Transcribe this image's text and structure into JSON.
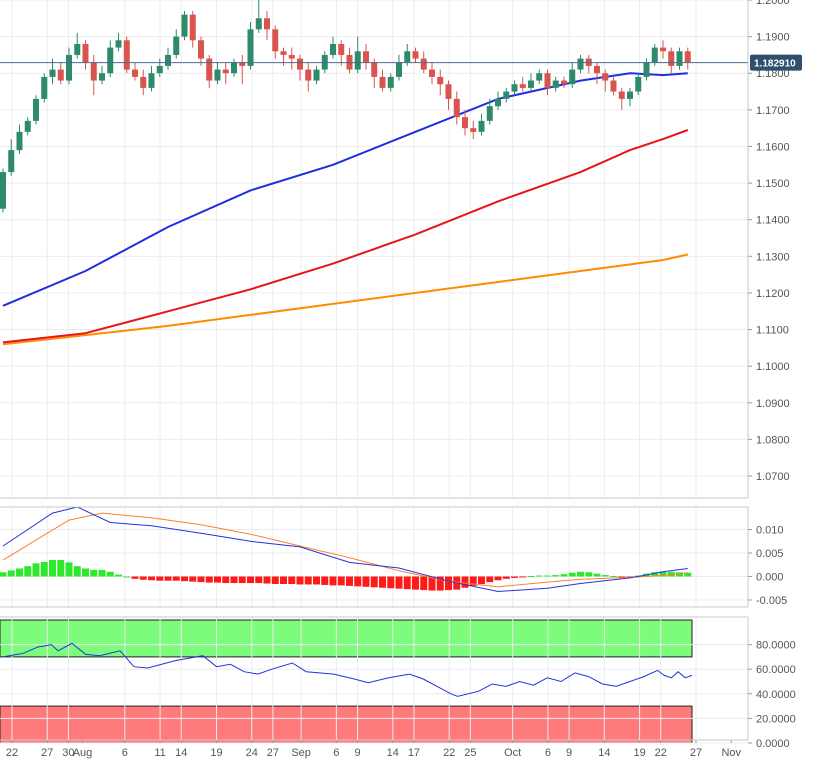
{
  "chart_data": [
    {
      "type": "candlestick",
      "price_ticks": [
        "1.2000",
        "1.1900",
        "1.1800",
        "1.1700",
        "1.1600",
        "1.1500",
        "1.1400",
        "1.1300",
        "1.1200",
        "1.1100",
        "1.1000",
        "1.0900",
        "1.0800",
        "1.0700"
      ],
      "ylim": [
        1.064,
        1.2
      ],
      "current_price": 1.18291,
      "current_price_label": "1.182910",
      "x_labels": [
        {
          "label": "22",
          "day": 0
        },
        {
          "label": "27",
          "day": 5
        },
        {
          "label": "30",
          "day": 8
        },
        {
          "label": "Aug",
          "day": 10
        },
        {
          "label": "6",
          "day": 16
        },
        {
          "label": "11",
          "day": 21
        },
        {
          "label": "14",
          "day": 24
        },
        {
          "label": "19",
          "day": 29
        },
        {
          "label": "24",
          "day": 34
        },
        {
          "label": "27",
          "day": 37
        },
        {
          "label": "Sep",
          "day": 41
        },
        {
          "label": "6",
          "day": 46
        },
        {
          "label": "9",
          "day": 49
        },
        {
          "label": "14",
          "day": 54
        },
        {
          "label": "17",
          "day": 57
        },
        {
          "label": "22",
          "day": 62
        },
        {
          "label": "25",
          "day": 65
        },
        {
          "label": "Oct",
          "day": 71
        },
        {
          "label": "6",
          "day": 76
        },
        {
          "label": "9",
          "day": 79
        },
        {
          "label": "14",
          "day": 84
        },
        {
          "label": "19",
          "day": 89
        },
        {
          "label": "22",
          "day": 92
        },
        {
          "label": "27",
          "day": 97
        },
        {
          "label": "Nov",
          "day": 102
        }
      ],
      "candles": [
        [
          0,
          1.143,
          1.153,
          1.142,
          1.154
        ],
        [
          1,
          1.153,
          1.159,
          1.152,
          1.162
        ],
        [
          2,
          1.159,
          1.164,
          1.158,
          1.166
        ],
        [
          3,
          1.164,
          1.167,
          1.163,
          1.168
        ],
        [
          4,
          1.167,
          1.173,
          1.166,
          1.174
        ],
        [
          5,
          1.173,
          1.179,
          1.172,
          1.18
        ],
        [
          6,
          1.179,
          1.181,
          1.177,
          1.184
        ],
        [
          7,
          1.181,
          1.178,
          1.177,
          1.183
        ],
        [
          8,
          1.178,
          1.185,
          1.177,
          1.187
        ],
        [
          9,
          1.185,
          1.188,
          1.184,
          1.191
        ],
        [
          10,
          1.188,
          1.183,
          1.181,
          1.189
        ],
        [
          11,
          1.183,
          1.178,
          1.174,
          1.185
        ],
        [
          12,
          1.178,
          1.18,
          1.177,
          1.182
        ],
        [
          13,
          1.18,
          1.187,
          1.179,
          1.189
        ],
        [
          14,
          1.187,
          1.189,
          1.186,
          1.191
        ],
        [
          15,
          1.189,
          1.181,
          1.18,
          1.19
        ],
        [
          16,
          1.181,
          1.179,
          1.178,
          1.183
        ],
        [
          17,
          1.179,
          1.176,
          1.174,
          1.181
        ],
        [
          18,
          1.176,
          1.18,
          1.175,
          1.182
        ],
        [
          19,
          1.18,
          1.182,
          1.179,
          1.184
        ],
        [
          20,
          1.182,
          1.185,
          1.181,
          1.187
        ],
        [
          21,
          1.185,
          1.19,
          1.184,
          1.192
        ],
        [
          22,
          1.19,
          1.196,
          1.189,
          1.197
        ],
        [
          23,
          1.196,
          1.189,
          1.187,
          1.197
        ],
        [
          24,
          1.189,
          1.184,
          1.182,
          1.19
        ],
        [
          25,
          1.184,
          1.178,
          1.176,
          1.185
        ],
        [
          26,
          1.178,
          1.181,
          1.177,
          1.183
        ],
        [
          27,
          1.181,
          1.18,
          1.177,
          1.183
        ],
        [
          28,
          1.18,
          1.183,
          1.179,
          1.184
        ],
        [
          29,
          1.183,
          1.182,
          1.177,
          1.185
        ],
        [
          30,
          1.182,
          1.192,
          1.181,
          1.194
        ],
        [
          31,
          1.192,
          1.195,
          1.191,
          1.201
        ],
        [
          32,
          1.195,
          1.192,
          1.189,
          1.197
        ],
        [
          33,
          1.192,
          1.186,
          1.184,
          1.193
        ],
        [
          34,
          1.186,
          1.185,
          1.182,
          1.187
        ],
        [
          35,
          1.185,
          1.184,
          1.181,
          1.187
        ],
        [
          36,
          1.184,
          1.181,
          1.178,
          1.185
        ],
        [
          37,
          1.181,
          1.178,
          1.175,
          1.183
        ],
        [
          38,
          1.178,
          1.181,
          1.177,
          1.182
        ],
        [
          39,
          1.181,
          1.185,
          1.18,
          1.186
        ],
        [
          40,
          1.185,
          1.188,
          1.184,
          1.19
        ],
        [
          41,
          1.188,
          1.185,
          1.182,
          1.189
        ],
        [
          42,
          1.185,
          1.181,
          1.18,
          1.187
        ],
        [
          43,
          1.181,
          1.186,
          1.18,
          1.19
        ],
        [
          44,
          1.186,
          1.183,
          1.181,
          1.188
        ],
        [
          45,
          1.183,
          1.179,
          1.176,
          1.184
        ],
        [
          46,
          1.179,
          1.176,
          1.175,
          1.181
        ],
        [
          47,
          1.176,
          1.179,
          1.175,
          1.18
        ],
        [
          48,
          1.179,
          1.183,
          1.178,
          1.185
        ],
        [
          49,
          1.183,
          1.186,
          1.182,
          1.188
        ],
        [
          50,
          1.186,
          1.184,
          1.183,
          1.187
        ],
        [
          51,
          1.184,
          1.181,
          1.18,
          1.186
        ],
        [
          52,
          1.181,
          1.179,
          1.177,
          1.183
        ],
        [
          53,
          1.179,
          1.177,
          1.174,
          1.181
        ],
        [
          54,
          1.177,
          1.173,
          1.17,
          1.178
        ],
        [
          55,
          1.173,
          1.168,
          1.166,
          1.175
        ],
        [
          56,
          1.168,
          1.165,
          1.163,
          1.17
        ],
        [
          57,
          1.165,
          1.164,
          1.162,
          1.167
        ],
        [
          58,
          1.164,
          1.167,
          1.163,
          1.169
        ],
        [
          59,
          1.167,
          1.171,
          1.166,
          1.173
        ],
        [
          60,
          1.171,
          1.173,
          1.17,
          1.175
        ],
        [
          61,
          1.173,
          1.175,
          1.172,
          1.176
        ],
        [
          62,
          1.175,
          1.177,
          1.174,
          1.178
        ],
        [
          63,
          1.177,
          1.176,
          1.175,
          1.179
        ],
        [
          64,
          1.176,
          1.178,
          1.175,
          1.18
        ],
        [
          65,
          1.178,
          1.18,
          1.177,
          1.181
        ],
        [
          66,
          1.18,
          1.176,
          1.174,
          1.181
        ],
        [
          67,
          1.176,
          1.178,
          1.175,
          1.179
        ],
        [
          68,
          1.178,
          1.177,
          1.176,
          1.179
        ],
        [
          69,
          1.177,
          1.181,
          1.176,
          1.183
        ],
        [
          70,
          1.181,
          1.184,
          1.18,
          1.185
        ],
        [
          71,
          1.184,
          1.182,
          1.18,
          1.185
        ],
        [
          72,
          1.182,
          1.18,
          1.177,
          1.183
        ],
        [
          73,
          1.18,
          1.178,
          1.175,
          1.181
        ],
        [
          74,
          1.178,
          1.175,
          1.174,
          1.179
        ],
        [
          75,
          1.175,
          1.173,
          1.17,
          1.176
        ],
        [
          76,
          1.173,
          1.175,
          1.171,
          1.176
        ],
        [
          77,
          1.175,
          1.179,
          1.174,
          1.18
        ],
        [
          78,
          1.179,
          1.183,
          1.178,
          1.184
        ],
        [
          79,
          1.183,
          1.187,
          1.182,
          1.188
        ],
        [
          80,
          1.187,
          1.186,
          1.184,
          1.189
        ],
        [
          81,
          1.186,
          1.182,
          1.18,
          1.187
        ],
        [
          82,
          1.182,
          1.186,
          1.181,
          1.187
        ],
        [
          83,
          1.186,
          1.183,
          1.181,
          1.187
        ]
      ],
      "sma_blue": [
        [
          0,
          1.1165
        ],
        [
          10,
          1.126
        ],
        [
          20,
          1.138
        ],
        [
          30,
          1.148
        ],
        [
          40,
          1.155
        ],
        [
          50,
          1.164
        ],
        [
          60,
          1.173
        ],
        [
          70,
          1.178
        ],
        [
          76,
          1.18
        ],
        [
          80,
          1.1795
        ],
        [
          83,
          1.18
        ]
      ],
      "sma_red": [
        [
          0,
          1.1065
        ],
        [
          10,
          1.109
        ],
        [
          20,
          1.115
        ],
        [
          30,
          1.121
        ],
        [
          40,
          1.128
        ],
        [
          50,
          1.136
        ],
        [
          60,
          1.145
        ],
        [
          70,
          1.153
        ],
        [
          76,
          1.159
        ],
        [
          80,
          1.162
        ],
        [
          83,
          1.1645
        ]
      ],
      "sma_orange": [
        [
          0,
          1.106
        ],
        [
          20,
          1.111
        ],
        [
          40,
          1.117
        ],
        [
          60,
          1.123
        ],
        [
          70,
          1.126
        ],
        [
          80,
          1.129
        ],
        [
          83,
          1.1305
        ]
      ]
    },
    {
      "type": "macd",
      "y_ticks": [
        "0.010",
        "0.005",
        "0.000",
        "-0.005"
      ],
      "ylim": [
        -0.0065,
        0.0148
      ],
      "macd_line": [
        [
          0,
          0.0065
        ],
        [
          6,
          0.0135
        ],
        [
          9,
          0.0148
        ],
        [
          13,
          0.0115
        ],
        [
          18,
          0.0108
        ],
        [
          24,
          0.0092
        ],
        [
          30,
          0.0075
        ],
        [
          36,
          0.0063
        ],
        [
          42,
          0.003
        ],
        [
          48,
          0.0018
        ],
        [
          54,
          -0.001
        ],
        [
          60,
          -0.0032
        ],
        [
          66,
          -0.0025
        ],
        [
          70,
          -0.0015
        ],
        [
          76,
          -0.0003
        ],
        [
          80,
          0.001
        ],
        [
          83,
          0.0017
        ]
      ],
      "signal_line": [
        [
          0,
          0.0035
        ],
        [
          8,
          0.012
        ],
        [
          12,
          0.0135
        ],
        [
          18,
          0.0125
        ],
        [
          24,
          0.011
        ],
        [
          30,
          0.009
        ],
        [
          36,
          0.0065
        ],
        [
          42,
          0.004
        ],
        [
          48,
          0.0012
        ],
        [
          54,
          -0.001
        ],
        [
          60,
          -0.0022
        ],
        [
          66,
          -0.0012
        ],
        [
          70,
          -0.0006
        ],
        [
          76,
          -0.0002
        ],
        [
          80,
          0.0002
        ],
        [
          83,
          0.0008
        ]
      ],
      "histogram": [
        0.0009,
        0.0013,
        0.0017,
        0.0022,
        0.0028,
        0.0031,
        0.0035,
        0.0035,
        0.003,
        0.0022,
        0.0017,
        0.0014,
        0.0014,
        0.001,
        0.0004,
        0.0,
        -0.0005,
        -0.0007,
        -0.0008,
        -0.0009,
        -0.0009,
        -0.0009,
        -0.001,
        -0.0011,
        -0.0012,
        -0.0013,
        -0.0013,
        -0.0014,
        -0.0014,
        -0.0014,
        -0.0014,
        -0.0014,
        -0.0015,
        -0.0016,
        -0.0016,
        -0.0016,
        -0.0017,
        -0.0017,
        -0.0017,
        -0.0018,
        -0.0019,
        -0.0019,
        -0.002,
        -0.0021,
        -0.0022,
        -0.0023,
        -0.0024,
        -0.0025,
        -0.0026,
        -0.0027,
        -0.0028,
        -0.0029,
        -0.003,
        -0.003,
        -0.0029,
        -0.0028,
        -0.0024,
        -0.002,
        -0.0016,
        -0.0012,
        -0.0008,
        -0.0005,
        -0.0003,
        -0.0001,
        0.0001,
        0.0002,
        0.0002,
        0.0003,
        0.0005,
        0.0008,
        0.001,
        0.0009,
        0.0006,
        0.0003,
        0.0001,
        -0.0001,
        -0.0002,
        0.0002,
        0.0006,
        0.0009,
        0.0011,
        0.001,
        0.0009,
        0.0008
      ]
    },
    {
      "type": "rsi",
      "y_ticks": [
        "80.0000",
        "60.0000",
        "40.0000",
        "20.0000",
        "0.0000"
      ],
      "ylim": [
        0,
        100
      ],
      "overbought": 70,
      "oversold": 30,
      "rsi_line": [
        [
          0,
          70
        ],
        [
          3,
          73
        ],
        [
          5,
          78
        ],
        [
          7,
          80
        ],
        [
          8,
          75
        ],
        [
          10,
          81
        ],
        [
          12,
          72
        ],
        [
          14,
          71
        ],
        [
          17,
          75
        ],
        [
          19,
          62
        ],
        [
          21,
          61
        ],
        [
          25,
          67
        ],
        [
          29,
          71
        ],
        [
          31,
          62
        ],
        [
          33,
          64
        ],
        [
          35,
          58
        ],
        [
          37,
          56
        ],
        [
          39,
          60
        ],
        [
          42,
          65
        ],
        [
          44,
          58
        ],
        [
          48,
          56
        ],
        [
          51,
          52
        ],
        [
          53,
          49
        ],
        [
          56,
          53
        ],
        [
          59,
          56
        ],
        [
          61,
          52
        ],
        [
          63,
          46
        ],
        [
          65,
          40
        ],
        [
          66,
          38
        ],
        [
          69,
          42
        ],
        [
          71,
          48
        ],
        [
          73,
          46
        ],
        [
          75,
          50
        ],
        [
          77,
          47
        ],
        [
          79,
          53
        ],
        [
          81,
          50
        ],
        [
          83,
          57
        ],
        [
          85,
          54
        ],
        [
          87,
          48
        ],
        [
          89,
          46
        ],
        [
          91,
          50
        ],
        [
          93,
          54
        ],
        [
          95,
          59
        ],
        [
          96,
          55
        ],
        [
          97,
          53
        ],
        [
          98,
          58
        ],
        [
          99,
          53
        ],
        [
          100,
          55
        ]
      ],
      "rsi_x_range": [
        0,
        100
      ]
    }
  ]
}
